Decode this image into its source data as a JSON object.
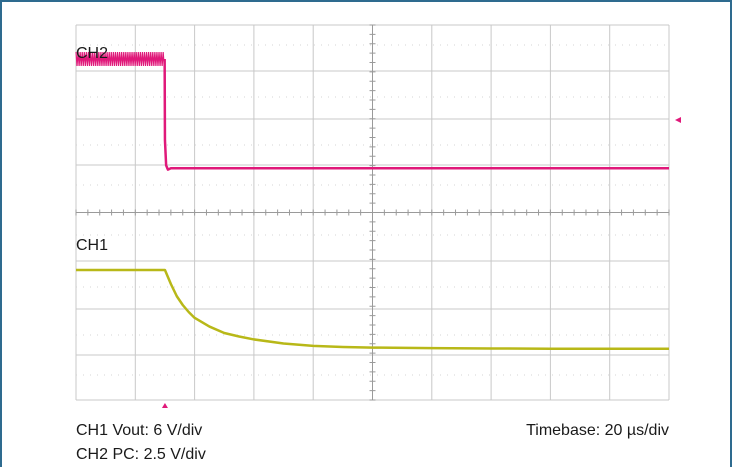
{
  "caption": {
    "ch1_scale": "CH1 Vout: 6 V/div",
    "ch2_scale": "CH2 PC: 2.5 V/div",
    "timebase": "Timebase: 20 µs/div"
  },
  "colors": {
    "frame": "#2e6b8f",
    "ch1_trace": "#b8b818",
    "ch2_trace": "#e0197a",
    "trigger_marker": "#e0197a"
  },
  "chart_data": {
    "type": "line",
    "title": "",
    "xlabel": "",
    "ylabel": "",
    "grid": true,
    "x_unit": "µs",
    "x_per_div": 20,
    "x_divisions": 10,
    "xlim": [
      0,
      200
    ],
    "trigger_time": 30,
    "series": [
      {
        "name": "CH2",
        "label": "CH2",
        "color": "#e0197a",
        "unit": "V",
        "v_per_div": 2.5,
        "ylim": [
          0,
          10
        ],
        "ripple": true,
        "x": [
          0,
          29.9,
          30.0,
          30.4,
          31.0,
          32.0,
          36.0,
          200
        ],
        "y": [
          9.0,
          9.0,
          3.2,
          1.4,
          1.1,
          1.2,
          1.2,
          1.2
        ]
      },
      {
        "name": "CH1",
        "label": "CH1",
        "color": "#b8b818",
        "unit": "V",
        "v_per_div": 6,
        "ylim": [
          0,
          24
        ],
        "ripple": false,
        "x": [
          0,
          30,
          32,
          34,
          36,
          38,
          40,
          45,
          50,
          55,
          60,
          70,
          80,
          90,
          100,
          120,
          140,
          160,
          200
        ],
        "y": [
          18.0,
          18.0,
          15.6,
          13.5,
          12.0,
          10.8,
          9.8,
          8.3,
          7.2,
          6.6,
          6.1,
          5.4,
          5.0,
          4.8,
          4.7,
          4.6,
          4.55,
          4.5,
          4.5
        ]
      }
    ]
  }
}
